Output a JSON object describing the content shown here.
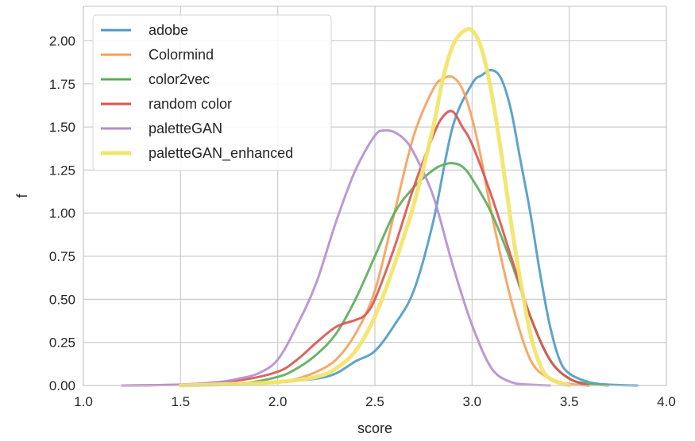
{
  "chart_data": {
    "type": "line",
    "title": "",
    "xlabel": "score",
    "ylabel": "f",
    "xlim": [
      1.0,
      4.0
    ],
    "ylim": [
      0.0,
      2.2
    ],
    "xticks": [
      1.0,
      1.5,
      2.0,
      2.5,
      3.0,
      3.5,
      4.0
    ],
    "xtick_labels": [
      "1.0",
      "1.5",
      "2.0",
      "2.5",
      "3.0",
      "3.5",
      "4.0"
    ],
    "yticks": [
      0.0,
      0.25,
      0.5,
      0.75,
      1.0,
      1.25,
      1.5,
      1.75,
      2.0
    ],
    "ytick_labels": [
      "0.00",
      "0.25",
      "0.50",
      "0.75",
      "1.00",
      "1.25",
      "1.50",
      "1.75",
      "2.00"
    ],
    "grid": true,
    "legend_position": "top-left",
    "series": [
      {
        "name": "adobe",
        "color": "#4c9ac3",
        "x": [
          1.5,
          1.8,
          2.0,
          2.2,
          2.3,
          2.4,
          2.5,
          2.6,
          2.7,
          2.8,
          2.9,
          3.0,
          3.05,
          3.1,
          3.15,
          3.2,
          3.25,
          3.3,
          3.35,
          3.4,
          3.45,
          3.5,
          3.6,
          3.7,
          3.85
        ],
        "y": [
          0.0,
          0.01,
          0.02,
          0.04,
          0.07,
          0.14,
          0.2,
          0.35,
          0.55,
          0.95,
          1.5,
          1.75,
          1.8,
          1.83,
          1.78,
          1.6,
          1.3,
          1.0,
          0.65,
          0.35,
          0.15,
          0.07,
          0.02,
          0.005,
          0.0
        ]
      },
      {
        "name": "Colormind",
        "color": "#f5a05a",
        "x": [
          1.5,
          1.8,
          2.0,
          2.1,
          2.2,
          2.3,
          2.4,
          2.5,
          2.6,
          2.7,
          2.8,
          2.85,
          2.9,
          2.95,
          3.0,
          3.05,
          3.1,
          3.2,
          3.3,
          3.4,
          3.5,
          3.6
        ],
        "y": [
          0.0,
          0.01,
          0.02,
          0.04,
          0.08,
          0.15,
          0.3,
          0.55,
          1.0,
          1.45,
          1.72,
          1.78,
          1.79,
          1.72,
          1.55,
          1.3,
          1.0,
          0.5,
          0.15,
          0.04,
          0.01,
          0.0
        ]
      },
      {
        "name": "color2vec",
        "color": "#5aad5a",
        "x": [
          1.5,
          1.8,
          2.0,
          2.1,
          2.2,
          2.3,
          2.4,
          2.5,
          2.6,
          2.7,
          2.8,
          2.85,
          2.9,
          2.95,
          3.0,
          3.1,
          3.2,
          3.3,
          3.4,
          3.5,
          3.6,
          3.7
        ],
        "y": [
          0.0,
          0.01,
          0.05,
          0.1,
          0.18,
          0.3,
          0.5,
          0.75,
          1.0,
          1.15,
          1.25,
          1.28,
          1.29,
          1.27,
          1.2,
          1.0,
          0.72,
          0.4,
          0.15,
          0.04,
          0.01,
          0.0
        ]
      },
      {
        "name": "random color",
        "color": "#d9534f",
        "x": [
          1.2,
          1.5,
          1.8,
          2.0,
          2.1,
          2.2,
          2.3,
          2.4,
          2.45,
          2.5,
          2.6,
          2.7,
          2.8,
          2.85,
          2.9,
          2.95,
          3.0,
          3.1,
          3.2,
          3.3,
          3.4,
          3.5,
          3.6
        ],
        "y": [
          0.0,
          0.005,
          0.03,
          0.08,
          0.15,
          0.25,
          0.34,
          0.38,
          0.41,
          0.5,
          0.8,
          1.15,
          1.45,
          1.56,
          1.59,
          1.5,
          1.4,
          1.1,
          0.75,
          0.4,
          0.15,
          0.04,
          0.0
        ]
      },
      {
        "name": "paletteGAN",
        "color": "#b48ecf",
        "x": [
          1.2,
          1.5,
          1.7,
          1.8,
          1.9,
          2.0,
          2.1,
          2.2,
          2.3,
          2.4,
          2.5,
          2.55,
          2.6,
          2.65,
          2.7,
          2.8,
          2.9,
          3.0,
          3.1,
          3.2,
          3.3,
          3.4
        ],
        "y": [
          0.0,
          0.005,
          0.02,
          0.04,
          0.07,
          0.15,
          0.35,
          0.6,
          0.95,
          1.25,
          1.45,
          1.48,
          1.47,
          1.43,
          1.35,
          1.1,
          0.7,
          0.35,
          0.1,
          0.02,
          0.005,
          0.0
        ]
      },
      {
        "name": "paletteGAN_enhanced",
        "color": "#f2e56b",
        "x": [
          1.5,
          1.8,
          2.0,
          2.2,
          2.3,
          2.4,
          2.5,
          2.6,
          2.7,
          2.8,
          2.85,
          2.9,
          2.95,
          3.0,
          3.05,
          3.1,
          3.15,
          3.2,
          3.25,
          3.3,
          3.35,
          3.4,
          3.5
        ],
        "y": [
          0.0,
          0.01,
          0.02,
          0.05,
          0.1,
          0.2,
          0.4,
          0.7,
          1.05,
          1.5,
          1.78,
          1.97,
          2.05,
          2.06,
          1.95,
          1.7,
          1.35,
          0.95,
          0.6,
          0.3,
          0.12,
          0.04,
          0.0
        ]
      }
    ]
  }
}
